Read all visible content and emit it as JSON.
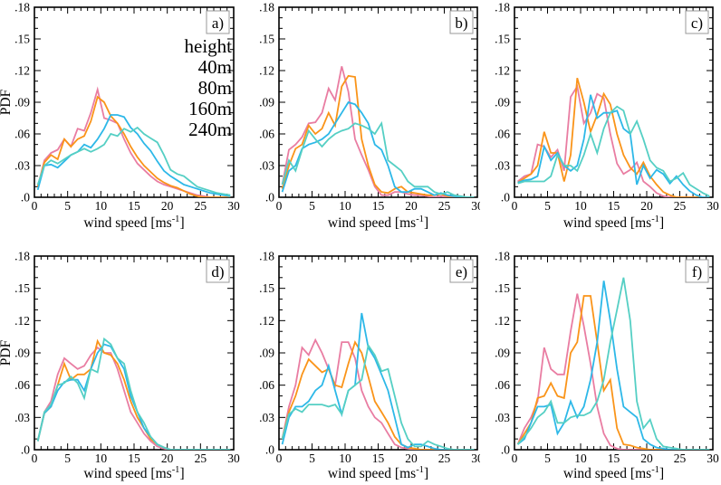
{
  "figure": {
    "background": "#ffffff",
    "axis_color": "#000000",
    "panel_box_border": "#999999",
    "y_axis_title": "PDF",
    "x_axis_title_parts": {
      "base": "wind speed [ms",
      "sup": "-1",
      "end": "]"
    },
    "xlim": [
      0,
      30
    ],
    "ylim": [
      0,
      0.18
    ],
    "x_ticks": {
      "major": [
        0,
        5,
        10,
        15,
        20,
        25,
        30
      ],
      "minor_step": 1
    },
    "y_ticks": {
      "major_values": [
        0,
        0.03,
        0.06,
        0.09,
        0.12,
        0.15,
        0.18
      ],
      "major_labels": [
        ".0",
        ".03",
        ".06",
        ".09",
        ".12",
        ".15",
        ".18"
      ],
      "minor_step": 0.01
    },
    "grid": "off"
  },
  "legend": {
    "title": "height",
    "position": "top-right of panel a",
    "entries": [
      {
        "label": "40m",
        "color": "#e97da2"
      },
      {
        "label": "80m",
        "color": "#fa9419"
      },
      {
        "label": "160m",
        "color": "#2db8e8"
      },
      {
        "label": "240m",
        "color": "#55cfc4"
      }
    ]
  },
  "chart_data": {
    "type": "line",
    "title": "",
    "xlabel": "wind speed [ms-1]",
    "ylabel": "PDF",
    "xlim": [
      0,
      30
    ],
    "ylim": [
      0,
      0.18
    ],
    "legend_position": "inside panel a, top right",
    "x_values": [
      0.5,
      1.5,
      2.5,
      3.5,
      4.5,
      5.5,
      6.5,
      7.5,
      8.5,
      9.5,
      10.5,
      11.5,
      12.5,
      13.5,
      14.5,
      15.5,
      16.5,
      17.5,
      18.5,
      19.5,
      20.5,
      21.5,
      22.5,
      23.5,
      24.5,
      25.5,
      26.5,
      27.5,
      28.5,
      29.5
    ],
    "panels": [
      {
        "panel_label": "a)",
        "series": [
          {
            "name": "40m",
            "values": [
              0.01,
              0.035,
              0.042,
              0.045,
              0.055,
              0.048,
              0.065,
              0.063,
              0.08,
              0.102,
              0.075,
              0.073,
              0.07,
              0.055,
              0.042,
              0.032,
              0.026,
              0.02,
              0.015,
              0.012,
              0.01,
              0.008,
              0.006,
              0.004,
              0.002,
              0.001,
              0,
              0,
              0,
              0
            ]
          },
          {
            "name": "80m",
            "values": [
              0.01,
              0.033,
              0.04,
              0.036,
              0.055,
              0.048,
              0.055,
              0.058,
              0.072,
              0.095,
              0.09,
              0.077,
              0.07,
              0.06,
              0.048,
              0.038,
              0.03,
              0.024,
              0.018,
              0.014,
              0.011,
              0.009,
              0.006,
              0.003,
              0.001,
              0,
              0,
              0,
              0,
              0
            ]
          },
          {
            "name": "160m",
            "values": [
              0.007,
              0.03,
              0.031,
              0.028,
              0.034,
              0.04,
              0.043,
              0.05,
              0.047,
              0.055,
              0.065,
              0.078,
              0.078,
              0.076,
              0.066,
              0.06,
              0.051,
              0.044,
              0.034,
              0.025,
              0.02,
              0.016,
              0.012,
              0.01,
              0.008,
              0.006,
              0.004,
              0.003,
              0.002,
              0.001
            ]
          },
          {
            "name": "240m",
            "values": [
              0.012,
              0.03,
              0.035,
              0.032,
              0.036,
              0.04,
              0.043,
              0.046,
              0.043,
              0.046,
              0.05,
              0.06,
              0.058,
              0.065,
              0.062,
              0.066,
              0.06,
              0.056,
              0.052,
              0.04,
              0.026,
              0.022,
              0.02,
              0.015,
              0.01,
              0.008,
              0.006,
              0.004,
              0.003,
              0.002
            ]
          }
        ]
      },
      {
        "panel_label": "b)",
        "series": [
          {
            "name": "40m",
            "values": [
              0.012,
              0.045,
              0.05,
              0.057,
              0.07,
              0.071,
              0.08,
              0.103,
              0.092,
              0.124,
              0.1,
              0.055,
              0.04,
              0.026,
              0.01,
              0.002,
              0.002,
              0.005,
              0.005,
              0.003,
              0.002,
              0.002,
              0.001,
              0,
              0.001,
              0,
              0,
              0,
              0,
              0
            ]
          },
          {
            "name": "80m",
            "values": [
              0.008,
              0.03,
              0.046,
              0.05,
              0.068,
              0.06,
              0.065,
              0.08,
              0.068,
              0.105,
              0.115,
              0.114,
              0.055,
              0.03,
              0.012,
              0.005,
              0.004,
              0.008,
              0.01,
              0.005,
              0.004,
              0.003,
              0.002,
              0.002,
              0.003,
              0.001,
              0.001,
              0,
              0,
              0
            ]
          },
          {
            "name": "160m",
            "values": [
              0.005,
              0.025,
              0.03,
              0.046,
              0.05,
              0.052,
              0.055,
              0.06,
              0.07,
              0.08,
              0.09,
              0.088,
              0.08,
              0.07,
              0.05,
              0.045,
              0.03,
              0.01,
              0.005,
              0.005,
              0.008,
              0.008,
              0.005,
              0.002,
              0.004,
              0.002,
              0.001,
              0,
              0,
              0
            ]
          },
          {
            "name": "240m",
            "values": [
              0.012,
              0.035,
              0.025,
              0.045,
              0.063,
              0.055,
              0.048,
              0.055,
              0.06,
              0.063,
              0.065,
              0.07,
              0.068,
              0.065,
              0.06,
              0.07,
              0.035,
              0.03,
              0.025,
              0.015,
              0.01,
              0.01,
              0.01,
              0.005,
              0.003,
              0.005,
              0.002,
              0.001,
              0,
              0
            ]
          }
        ]
      },
      {
        "panel_label": "c)",
        "series": [
          {
            "name": "40m",
            "values": [
              0.015,
              0.02,
              0.022,
              0.05,
              0.048,
              0.038,
              0.045,
              0.025,
              0.095,
              0.105,
              0.07,
              0.08,
              0.098,
              0.094,
              0.06,
              0.032,
              0.022,
              0.026,
              0.033,
              0.015,
              0.01,
              0.004,
              0.001,
              0,
              0,
              0,
              0,
              0,
              0,
              0
            ]
          },
          {
            "name": "80m",
            "values": [
              0.014,
              0.018,
              0.022,
              0.03,
              0.062,
              0.042,
              0.042,
              0.015,
              0.04,
              0.113,
              0.09,
              0.062,
              0.078,
              0.098,
              0.088,
              0.06,
              0.04,
              0.028,
              0.022,
              0.033,
              0.02,
              0.012,
              0.005,
              0.002,
              0,
              0,
              0,
              0,
              0,
              0
            ]
          },
          {
            "name": "160m",
            "values": [
              0.014,
              0.016,
              0.017,
              0.02,
              0.048,
              0.035,
              0.042,
              0.03,
              0.025,
              0.03,
              0.055,
              0.097,
              0.075,
              0.08,
              0.08,
              0.082,
              0.065,
              0.06,
              0.012,
              0.03,
              0.018,
              0.026,
              0.022,
              0.013,
              0.02,
              0.012,
              0.006,
              0.002,
              0,
              0
            ]
          },
          {
            "name": "240m",
            "values": [
              0.013,
              0.015,
              0.015,
              0.015,
              0.015,
              0.02,
              0.04,
              0.03,
              0.03,
              0.025,
              0.04,
              0.06,
              0.042,
              0.065,
              0.08,
              0.086,
              0.082,
              0.06,
              0.072,
              0.055,
              0.035,
              0.028,
              0.025,
              0.015,
              0.018,
              0.023,
              0.012,
              0.008,
              0.004,
              0.001
            ]
          }
        ]
      },
      {
        "panel_label": "d)",
        "series": [
          {
            "name": "40m",
            "values": [
              0.008,
              0.035,
              0.045,
              0.07,
              0.085,
              0.08,
              0.075,
              0.078,
              0.088,
              0.095,
              0.09,
              0.09,
              0.075,
              0.055,
              0.035,
              0.025,
              0.015,
              0.008,
              0.003,
              0.001,
              0,
              0,
              0,
              0,
              0,
              0,
              0,
              0,
              0,
              0
            ]
          },
          {
            "name": "80m",
            "values": [
              0.008,
              0.034,
              0.04,
              0.06,
              0.08,
              0.065,
              0.07,
              0.07,
              0.075,
              0.101,
              0.09,
              0.088,
              0.08,
              0.065,
              0.045,
              0.03,
              0.02,
              0.01,
              0.005,
              0.002,
              0,
              0,
              0,
              0,
              0,
              0,
              0,
              0,
              0,
              0
            ]
          },
          {
            "name": "160m",
            "values": [
              0.008,
              0.034,
              0.04,
              0.055,
              0.063,
              0.065,
              0.065,
              0.055,
              0.075,
              0.09,
              0.098,
              0.096,
              0.085,
              0.075,
              0.05,
              0.035,
              0.02,
              0.012,
              0.005,
              0.002,
              0,
              0,
              0,
              0,
              0,
              0,
              0,
              0,
              0,
              0
            ]
          },
          {
            "name": "240m",
            "values": [
              0.008,
              0.035,
              0.042,
              0.06,
              0.062,
              0.068,
              0.062,
              0.048,
              0.075,
              0.072,
              0.103,
              0.098,
              0.085,
              0.08,
              0.055,
              0.035,
              0.025,
              0.012,
              0.005,
              0.002,
              0,
              0,
              0,
              0,
              0,
              0,
              0,
              0,
              0,
              0
            ]
          }
        ]
      },
      {
        "panel_label": "e)",
        "series": [
          {
            "name": "40m",
            "values": [
              0.01,
              0.04,
              0.06,
              0.095,
              0.088,
              0.102,
              0.09,
              0.075,
              0.06,
              0.1,
              0.1,
              0.085,
              0.055,
              0.04,
              0.03,
              0.025,
              0.015,
              0.005,
              0.002,
              0.001,
              0,
              0,
              0,
              0,
              0,
              0,
              0,
              0,
              0,
              0
            ]
          },
          {
            "name": "80m",
            "values": [
              0.01,
              0.035,
              0.05,
              0.07,
              0.084,
              0.078,
              0.072,
              0.075,
              0.06,
              0.058,
              0.08,
              0.1,
              0.09,
              0.068,
              0.045,
              0.035,
              0.025,
              0.012,
              0.005,
              0.002,
              0.001,
              0,
              0,
              0,
              0,
              0,
              0,
              0,
              0,
              0
            ]
          },
          {
            "name": "160m",
            "values": [
              0.005,
              0.03,
              0.04,
              0.04,
              0.045,
              0.055,
              0.06,
              0.078,
              0.055,
              0.033,
              0.055,
              0.06,
              0.127,
              0.095,
              0.085,
              0.07,
              0.055,
              0.03,
              0.005,
              0.002,
              0.005,
              0.005,
              0.003,
              0.001,
              0,
              0,
              0,
              0,
              0,
              0
            ]
          },
          {
            "name": "240m",
            "values": [
              0.01,
              0.033,
              0.038,
              0.035,
              0.042,
              0.042,
              0.042,
              0.04,
              0.042,
              0.033,
              0.055,
              0.06,
              0.065,
              0.097,
              0.088,
              0.073,
              0.075,
              0.05,
              0.025,
              0.01,
              0.003,
              0.003,
              0.008,
              0.005,
              0.003,
              0.001,
              0,
              0,
              0,
              0
            ]
          }
        ]
      },
      {
        "panel_label": "f)",
        "series": [
          {
            "name": "40m",
            "values": [
              0.005,
              0.02,
              0.03,
              0.045,
              0.095,
              0.075,
              0.07,
              0.07,
              0.11,
              0.145,
              0.115,
              0.08,
              0.04,
              0.015,
              0.004,
              0.001,
              0,
              0,
              0,
              0,
              0,
              0,
              0,
              0,
              0,
              0,
              0,
              0,
              0,
              0
            ]
          },
          {
            "name": "80m",
            "values": [
              0.005,
              0.015,
              0.025,
              0.048,
              0.05,
              0.062,
              0.05,
              0.048,
              0.09,
              0.1,
              0.143,
              0.143,
              0.1,
              0.055,
              0.065,
              0.02,
              0.005,
              0.004,
              0.002,
              0.001,
              0,
              0,
              0,
              0,
              0,
              0,
              0,
              0,
              0,
              0
            ]
          },
          {
            "name": "160m",
            "values": [
              0.005,
              0.01,
              0.025,
              0.04,
              0.04,
              0.042,
              0.015,
              0.025,
              0.045,
              0.03,
              0.04,
              0.065,
              0.1,
              0.157,
              0.12,
              0.075,
              0.04,
              0.035,
              0.03,
              0.01,
              0.005,
              0.002,
              0.001,
              0,
              0,
              0,
              0,
              0,
              0,
              0
            ]
          },
          {
            "name": "240m",
            "values": [
              0.005,
              0.012,
              0.02,
              0.03,
              0.035,
              0.045,
              0.025,
              0.025,
              0.03,
              0.032,
              0.032,
              0.035,
              0.045,
              0.065,
              0.1,
              0.13,
              0.16,
              0.12,
              0.045,
              0.02,
              0.028,
              0.01,
              0.003,
              0.002,
              0.001,
              0,
              0,
              0,
              0,
              0
            ]
          }
        ]
      }
    ]
  }
}
